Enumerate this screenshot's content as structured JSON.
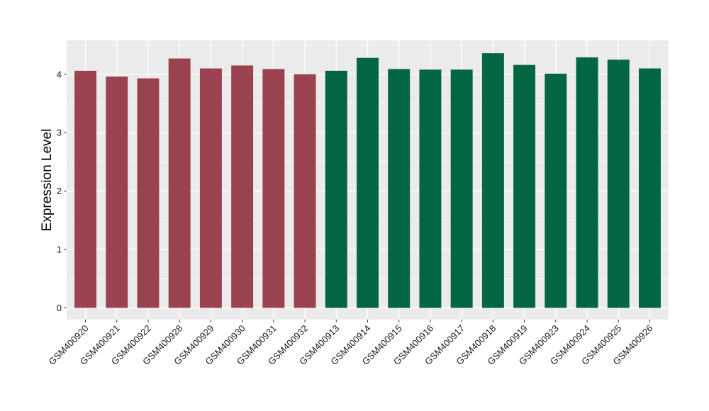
{
  "chart_data": {
    "type": "bar",
    "title": "",
    "xlabel": "",
    "ylabel": "Expression Level",
    "ylim": [
      -0.2,
      4.58
    ],
    "yticks": [
      0,
      1,
      2,
      3,
      4
    ],
    "grid": true,
    "legend": "none",
    "categories": [
      "GSM400920",
      "GSM400921",
      "GSM400922",
      "GSM400928",
      "GSM400929",
      "GSM400930",
      "GSM400931",
      "GSM400932",
      "GSM400913",
      "GSM400914",
      "GSM400915",
      "GSM400916",
      "GSM400917",
      "GSM400918",
      "GSM400919",
      "GSM400923",
      "GSM400924",
      "GSM400925",
      "GSM400926"
    ],
    "values": [
      4.06,
      3.96,
      3.93,
      4.27,
      4.1,
      4.15,
      4.09,
      4.0,
      4.06,
      4.28,
      4.09,
      4.08,
      4.08,
      4.36,
      4.16,
      4.01,
      4.29,
      4.25,
      4.1
    ],
    "groups": [
      "g1",
      "g1",
      "g1",
      "g1",
      "g1",
      "g1",
      "g1",
      "g1",
      "g2",
      "g2",
      "g2",
      "g2",
      "g2",
      "g2",
      "g2",
      "g2",
      "g2",
      "g2",
      "g2"
    ],
    "group_colors": {
      "g1": "#9b4250",
      "g2": "#036643"
    },
    "panel_background": "#ebebeb",
    "grid_color": "#ffffff"
  }
}
